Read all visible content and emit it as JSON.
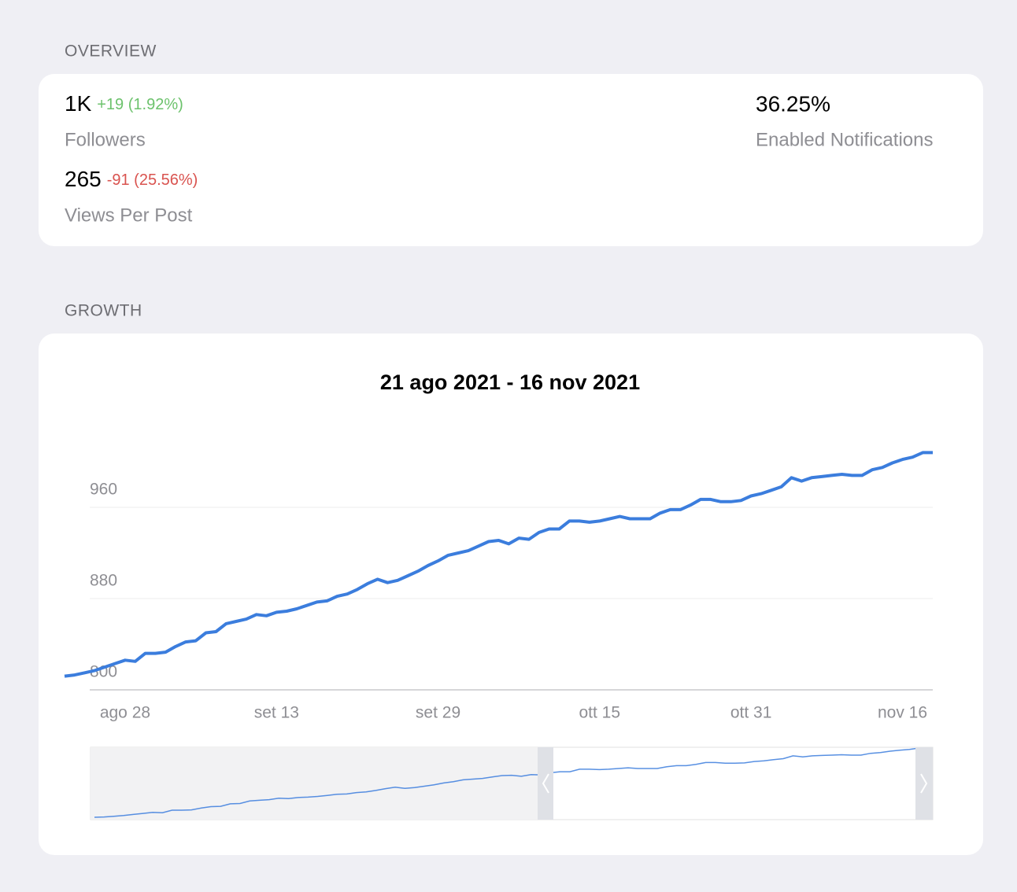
{
  "overview": {
    "label": "OVERVIEW",
    "items": [
      {
        "value": "1K",
        "change": "+19 (1.92%)",
        "label": "Followers"
      },
      {
        "value": "265",
        "change": "-91 (25.56%)",
        "label": "Views Per Post"
      },
      {
        "value": "36.25%",
        "label": "Enabled Notifications"
      }
    ]
  },
  "growth": {
    "label": "GROWTH"
  },
  "chart_data": {
    "type": "line",
    "title": "21 ago 2021 - 16 nov 2021",
    "categories": [
      null,
      null,
      null,
      null,
      null,
      null,
      "ago 28",
      null,
      null,
      null,
      null,
      null,
      null,
      null,
      null,
      null,
      null,
      null,
      null,
      null,
      null,
      "set 13",
      null,
      null,
      null,
      null,
      null,
      null,
      null,
      null,
      null,
      null,
      null,
      null,
      null,
      null,
      null,
      "set 29",
      null,
      null,
      null,
      null,
      null,
      null,
      null,
      null,
      null,
      null,
      null,
      null,
      null,
      null,
      null,
      "ott 15",
      null,
      null,
      null,
      null,
      null,
      null,
      null,
      null,
      null,
      null,
      null,
      null,
      null,
      null,
      "ott 31",
      null,
      null,
      null,
      null,
      null,
      null,
      null,
      null,
      null,
      null,
      null,
      null,
      null,
      null,
      "nov 16",
      null,
      null,
      null
    ],
    "series": [
      {
        "color": "#3b7ddd",
        "values": [
          812,
          813,
          815,
          817,
          820,
          823,
          826,
          825,
          832,
          832,
          833,
          838,
          842,
          843,
          850,
          851,
          858,
          860,
          862,
          866,
          865,
          868,
          869,
          871,
          874,
          877,
          878,
          882,
          884,
          888,
          893,
          897,
          894,
          896,
          900,
          904,
          909,
          913,
          918,
          920,
          922,
          926,
          930,
          931,
          928,
          933,
          932,
          938,
          941,
          941,
          948,
          948,
          947,
          948,
          950,
          952,
          950,
          950,
          950,
          955,
          958,
          958,
          962,
          967,
          967,
          965,
          965,
          966,
          970,
          972,
          975,
          978,
          986,
          983,
          986,
          987,
          988,
          989,
          988,
          988,
          993,
          995,
          999,
          1002,
          1004,
          1008,
          1008
        ]
      }
    ],
    "ylim": [
      800,
      1010
    ],
    "yticks": [
      800,
      880,
      960
    ],
    "grid": true
  }
}
